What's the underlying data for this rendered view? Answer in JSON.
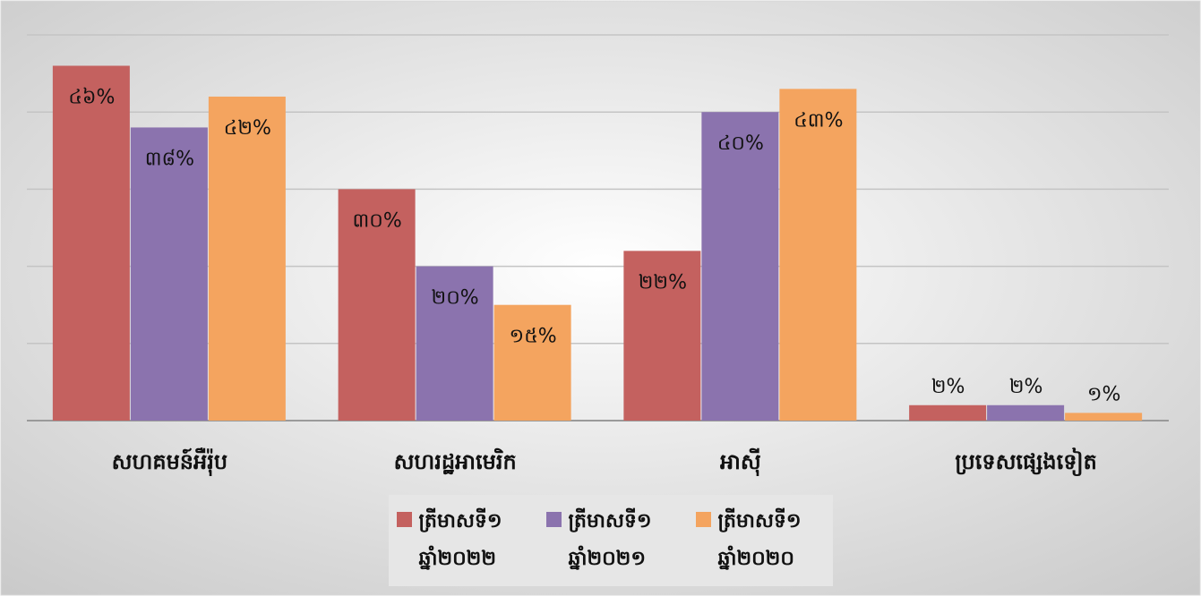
{
  "chart_data": {
    "type": "bar",
    "categories": [
      "សហគមន៍អឺរ៉ុប",
      "សហរដ្ឋអាមេរិក",
      "អាស៊ី",
      "ប្រទេសផ្សេងទៀត"
    ],
    "series": [
      {
        "name": "ត្រីមាសទី១ ឆ្នាំ២០២២",
        "color": "#c4615f",
        "values": [
          46,
          30,
          22,
          2
        ],
        "value_labels": [
          "៤៦%",
          "៣០%",
          "២២%",
          "២%"
        ]
      },
      {
        "name": "ត្រីមាសទី១ ឆ្នាំ២០២១",
        "color": "#8b73ae",
        "values": [
          38,
          20,
          40,
          2
        ],
        "value_labels": [
          "៣៨%",
          "២០%",
          "៤០%",
          "២%"
        ]
      },
      {
        "name": "ត្រីមាសទី១ ឆ្នាំ២០២០",
        "color": "#f4a45f",
        "values": [
          42,
          15,
          43,
          1
        ],
        "value_labels": [
          "៤២%",
          "១៥%",
          "៤៣%",
          "១%"
        ]
      }
    ],
    "ylim": [
      0,
      50
    ],
    "yticks": [
      0,
      10,
      20,
      30,
      40,
      50
    ],
    "grid": true,
    "legend": "bottom"
  }
}
